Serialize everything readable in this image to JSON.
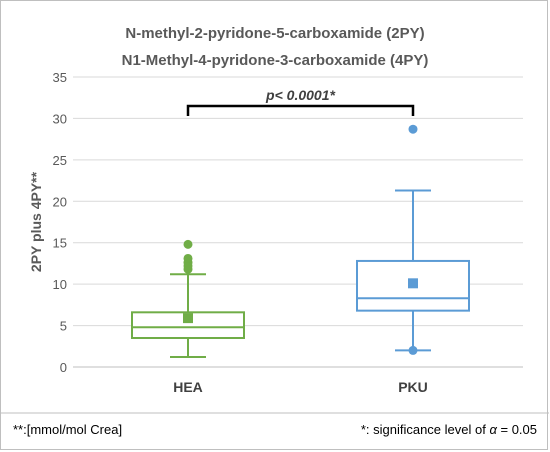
{
  "chart_data": {
    "type": "box",
    "title_lines": [
      "N-methyl-2-pyridone-5-carboxamide  (2PY)",
      "N1-Methyl-4-pyridone-3-carboxamide  (4PY)"
    ],
    "ylabel": "2PY plus 4PY**",
    "ylim": [
      0,
      35
    ],
    "yticks": [
      0,
      5,
      10,
      15,
      20,
      25,
      30,
      35
    ],
    "grid": true,
    "categories": [
      "HEA",
      "PKU"
    ],
    "boxes": [
      {
        "category": "HEA",
        "color": "#70AD47",
        "whisker_low": 1.2,
        "q1": 3.5,
        "median": 4.8,
        "q3": 6.6,
        "whisker_high": 11.2,
        "mean": 5.9,
        "outliers": [
          11.8,
          12.2,
          12.6,
          13.1,
          14.8
        ]
      },
      {
        "category": "PKU",
        "color": "#5B9BD5",
        "whisker_low": 2.0,
        "q1": 6.8,
        "median": 8.3,
        "q3": 12.8,
        "whisker_high": 21.3,
        "mean": 10.1,
        "outliers": [
          2.0,
          28.7
        ]
      }
    ],
    "significance": {
      "label": "p< 0.0001*",
      "bracket_y": 31.5,
      "between": [
        "HEA",
        "PKU"
      ]
    }
  },
  "footnotes": {
    "left": "**:[mmol/mol Crea]",
    "right_prefix": "*:  significance level of ",
    "right_symbol": "α",
    "right_suffix": " = 0.05"
  }
}
